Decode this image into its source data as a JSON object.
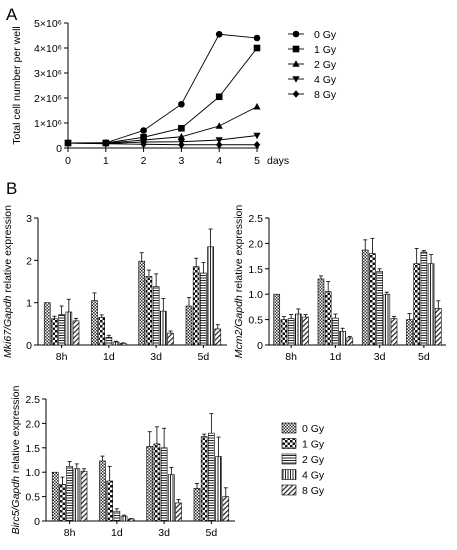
{
  "panels": {
    "a_label": "A",
    "b_label": "B"
  },
  "chart_data": [
    {
      "id": "A",
      "type": "line",
      "ylabel": "Total cell number per well",
      "xlabel": "days",
      "x": [
        0,
        1,
        2,
        3,
        4,
        5
      ],
      "xlim": [
        0,
        5
      ],
      "ylim": [
        0,
        5000000
      ],
      "yticks": [
        0,
        1000000,
        2000000,
        3000000,
        4000000,
        5000000
      ],
      "ytick_labels": [
        "0",
        "1×10⁶",
        "2×10⁶",
        "3×10⁶",
        "4×10⁶",
        "5×10⁶"
      ],
      "legend_position": "right",
      "series": [
        {
          "name": "0 Gy",
          "marker": "circle",
          "values": [
            200000,
            210000,
            700000,
            1750000,
            4550000,
            4400000
          ]
        },
        {
          "name": "1 Gy",
          "marker": "square",
          "values": [
            200000,
            200000,
            430000,
            790000,
            2050000,
            4000000
          ]
        },
        {
          "name": "2 Gy",
          "marker": "triangle-up",
          "values": [
            200000,
            190000,
            320000,
            450000,
            880000,
            1650000
          ]
        },
        {
          "name": "4 Gy",
          "marker": "triangle-down",
          "values": [
            200000,
            180000,
            240000,
            250000,
            320000,
            500000
          ]
        },
        {
          "name": "8 Gy",
          "marker": "diamond",
          "values": [
            200000,
            170000,
            150000,
            130000,
            130000,
            130000
          ]
        }
      ]
    },
    {
      "id": "B1",
      "type": "bar",
      "ylabel_gene": "Mki67/Gapdh",
      "ylabel_rest": " relative expression",
      "categories": [
        "8h",
        "1d",
        "3d",
        "5d"
      ],
      "ylim": [
        0,
        3
      ],
      "yticks": [
        0,
        1,
        2,
        3
      ],
      "series": [
        {
          "name": "0 Gy",
          "values": [
            1.0,
            1.05,
            1.98,
            0.92
          ],
          "errors": [
            0.0,
            0.18,
            0.2,
            0.2
          ]
        },
        {
          "name": "1 Gy",
          "values": [
            0.62,
            0.65,
            1.62,
            1.85
          ],
          "errors": [
            0.06,
            0.06,
            0.15,
            0.2
          ]
        },
        {
          "name": "2 Gy",
          "values": [
            0.72,
            0.18,
            1.38,
            1.7
          ],
          "errors": [
            0.2,
            0.05,
            0.3,
            0.25
          ]
        },
        {
          "name": "4 Gy",
          "values": [
            0.78,
            0.07,
            0.8,
            2.32
          ],
          "errors": [
            0.3,
            0.02,
            0.3,
            0.42
          ]
        },
        {
          "name": "8 Gy",
          "values": [
            0.57,
            0.04,
            0.28,
            0.38
          ],
          "errors": [
            0.06,
            0.01,
            0.05,
            0.1
          ]
        }
      ]
    },
    {
      "id": "B2",
      "type": "bar",
      "ylabel_gene": "Mcm2/Gapdh",
      "ylabel_rest": " relative expression",
      "categories": [
        "8h",
        "1d",
        "3d",
        "5d"
      ],
      "ylim": [
        0,
        2.5
      ],
      "yticks": [
        0,
        0.5,
        1.0,
        1.5,
        2.0,
        2.5
      ],
      "series": [
        {
          "name": "0 Gy",
          "values": [
            1.0,
            1.3,
            1.87,
            0.5
          ],
          "errors": [
            0.0,
            0.06,
            0.2,
            0.12
          ]
        },
        {
          "name": "1 Gy",
          "values": [
            0.5,
            1.05,
            1.8,
            1.6
          ],
          "errors": [
            0.06,
            0.2,
            0.3,
            0.3
          ]
        },
        {
          "name": "2 Gy",
          "values": [
            0.52,
            0.53,
            1.45,
            1.83
          ],
          "errors": [
            0.08,
            0.08,
            0.05,
            0.03
          ]
        },
        {
          "name": "4 Gy",
          "values": [
            0.61,
            0.27,
            1.0,
            1.6
          ],
          "errors": [
            0.1,
            0.06,
            0.04,
            0.18
          ]
        },
        {
          "name": "8 Gy",
          "values": [
            0.55,
            0.14,
            0.52,
            0.72
          ],
          "errors": [
            0.05,
            0.03,
            0.04,
            0.15
          ]
        }
      ]
    },
    {
      "id": "B3",
      "type": "bar",
      "ylabel_gene": "Birc5/Gapdh",
      "ylabel_rest": " relative expression",
      "categories": [
        "8h",
        "1d",
        "3d",
        "5d"
      ],
      "ylim": [
        0,
        2.5
      ],
      "yticks": [
        0,
        0.5,
        1.0,
        1.5,
        2.0,
        2.5
      ],
      "legend_position": "right",
      "series": [
        {
          "name": "0 Gy",
          "values": [
            1.0,
            1.23,
            1.53,
            0.67
          ],
          "errors": [
            0.0,
            0.1,
            0.3,
            0.1
          ]
        },
        {
          "name": "1 Gy",
          "values": [
            0.75,
            0.82,
            1.58,
            1.73
          ],
          "errors": [
            0.15,
            0.3,
            0.35,
            0.05
          ]
        },
        {
          "name": "2 Gy",
          "values": [
            1.12,
            0.2,
            1.5,
            1.8
          ],
          "errors": [
            0.1,
            0.05,
            0.4,
            0.4
          ]
        },
        {
          "name": "4 Gy",
          "values": [
            1.07,
            0.1,
            0.95,
            1.32
          ],
          "errors": [
            0.1,
            0.02,
            0.15,
            0.4
          ]
        },
        {
          "name": "8 Gy",
          "values": [
            1.02,
            0.04,
            0.37,
            0.5
          ],
          "errors": [
            0.05,
            0.01,
            0.07,
            0.18
          ]
        }
      ]
    }
  ]
}
